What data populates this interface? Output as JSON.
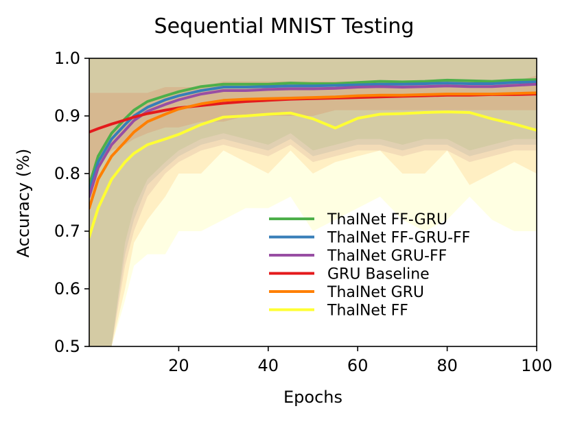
{
  "chart_data": {
    "type": "line",
    "title": "Sequential MNIST Testing",
    "xlabel": "Epochs",
    "ylabel": "Accuracy (%)",
    "xlim": [
      0,
      100
    ],
    "ylim": [
      0.5,
      1.0
    ],
    "x_ticks": [
      20,
      40,
      60,
      80,
      100
    ],
    "y_ticks": [
      0.5,
      0.6,
      0.7,
      0.8,
      0.9,
      1.0
    ],
    "x_tick_labels": [
      "20",
      "40",
      "60",
      "80",
      "100"
    ],
    "y_tick_labels": [
      "0.5",
      "0.6",
      "0.7",
      "0.8",
      "0.9",
      "1.0"
    ],
    "grid": false,
    "legend_position": "lower-right",
    "x": [
      0,
      2,
      5,
      8,
      10,
      13,
      17,
      20,
      25,
      30,
      35,
      40,
      45,
      50,
      55,
      60,
      65,
      70,
      75,
      80,
      85,
      90,
      95,
      100
    ],
    "series": [
      {
        "name": "ThalNet FF-GRU",
        "color": "#4daf4a",
        "values": [
          0.78,
          0.83,
          0.87,
          0.895,
          0.91,
          0.925,
          0.935,
          0.942,
          0.951,
          0.955,
          0.955,
          0.955,
          0.957,
          0.956,
          0.956,
          0.958,
          0.96,
          0.959,
          0.96,
          0.962,
          0.961,
          0.96,
          0.962,
          0.963
        ]
      },
      {
        "name": "ThalNet FF-GRU-FF",
        "color": "#377eb8",
        "values": [
          0.77,
          0.82,
          0.86,
          0.885,
          0.9,
          0.915,
          0.928,
          0.935,
          0.944,
          0.95,
          0.95,
          0.951,
          0.952,
          0.952,
          0.953,
          0.954,
          0.955,
          0.955,
          0.956,
          0.957,
          0.956,
          0.956,
          0.958,
          0.959
        ]
      },
      {
        "name": "ThalNet GRU-FF",
        "color": "#984ea3",
        "values": [
          0.76,
          0.81,
          0.85,
          0.875,
          0.892,
          0.908,
          0.92,
          0.928,
          0.938,
          0.944,
          0.944,
          0.946,
          0.947,
          0.947,
          0.948,
          0.95,
          0.951,
          0.95,
          0.951,
          0.952,
          0.951,
          0.951,
          0.953,
          0.955
        ]
      },
      {
        "name": "GRU Baseline",
        "color": "#e41a1c",
        "values": [
          0.872,
          0.878,
          0.886,
          0.893,
          0.898,
          0.904,
          0.91,
          0.914,
          0.918,
          0.922,
          0.925,
          0.927,
          0.929,
          0.93,
          0.931,
          0.932,
          0.933,
          0.934,
          0.935,
          0.936,
          0.936,
          0.937,
          0.937,
          0.938
        ]
      },
      {
        "name": "ThalNet GRU",
        "color": "#ff7f00",
        "values": [
          0.74,
          0.79,
          0.83,
          0.855,
          0.872,
          0.89,
          0.903,
          0.912,
          0.921,
          0.927,
          0.929,
          0.93,
          0.931,
          0.932,
          0.933,
          0.935,
          0.936,
          0.936,
          0.937,
          0.938,
          0.938,
          0.938,
          0.939,
          0.94
        ]
      },
      {
        "name": "ThalNet FF",
        "color": "#ffff33",
        "values": [
          0.69,
          0.74,
          0.79,
          0.82,
          0.835,
          0.85,
          0.86,
          0.868,
          0.885,
          0.898,
          0.9,
          0.903,
          0.905,
          0.895,
          0.879,
          0.896,
          0.903,
          0.904,
          0.906,
          0.907,
          0.906,
          0.895,
          0.886,
          0.875
        ]
      }
    ],
    "error_bands": [
      {
        "series": "ThalNet FF-GRU",
        "color": "#4daf4a",
        "lower": [
          0.5,
          0.5,
          0.5,
          0.68,
          0.74,
          0.79,
          0.82,
          0.84,
          0.86,
          0.87,
          0.86,
          0.85,
          0.87,
          0.84,
          0.85,
          0.86,
          0.86,
          0.85,
          0.86,
          0.86,
          0.84,
          0.85,
          0.86,
          0.86
        ],
        "upper": [
          1.0,
          1.0,
          1.0,
          1.0,
          1.0,
          1.0,
          1.0,
          1.0,
          1.0,
          1.0,
          1.0,
          1.0,
          1.0,
          1.0,
          1.0,
          1.0,
          1.0,
          1.0,
          1.0,
          1.0,
          1.0,
          1.0,
          1.0,
          1.0
        ]
      },
      {
        "series": "ThalNet FF-GRU-FF",
        "color": "#377eb8",
        "lower": [
          0.5,
          0.5,
          0.5,
          0.66,
          0.72,
          0.78,
          0.81,
          0.83,
          0.85,
          0.86,
          0.85,
          0.84,
          0.86,
          0.83,
          0.84,
          0.85,
          0.85,
          0.84,
          0.85,
          0.85,
          0.83,
          0.84,
          0.85,
          0.85
        ],
        "upper": [
          1.0,
          1.0,
          1.0,
          1.0,
          1.0,
          1.0,
          1.0,
          1.0,
          1.0,
          1.0,
          1.0,
          1.0,
          1.0,
          1.0,
          1.0,
          1.0,
          1.0,
          1.0,
          1.0,
          1.0,
          1.0,
          1.0,
          1.0,
          1.0
        ]
      },
      {
        "series": "ThalNet GRU-FF",
        "color": "#984ea3",
        "lower": [
          0.5,
          0.5,
          0.5,
          0.64,
          0.7,
          0.76,
          0.8,
          0.82,
          0.84,
          0.85,
          0.84,
          0.83,
          0.85,
          0.82,
          0.83,
          0.84,
          0.84,
          0.83,
          0.84,
          0.84,
          0.82,
          0.83,
          0.84,
          0.84
        ],
        "upper": [
          1.0,
          1.0,
          1.0,
          1.0,
          1.0,
          1.0,
          1.0,
          1.0,
          1.0,
          1.0,
          1.0,
          1.0,
          1.0,
          1.0,
          1.0,
          1.0,
          1.0,
          1.0,
          1.0,
          1.0,
          1.0,
          1.0,
          1.0,
          1.0
        ]
      },
      {
        "series": "GRU Baseline",
        "color": "#e41a1c",
        "lower": [
          0.8,
          0.82,
          0.84,
          0.85,
          0.86,
          0.87,
          0.88,
          0.88,
          0.89,
          0.89,
          0.9,
          0.9,
          0.9,
          0.9,
          0.91,
          0.91,
          0.91,
          0.91,
          0.91,
          0.91,
          0.91,
          0.91,
          0.91,
          0.91
        ],
        "upper": [
          0.94,
          0.94,
          0.94,
          0.94,
          0.94,
          0.94,
          0.95,
          0.95,
          0.95,
          0.96,
          0.96,
          0.96,
          0.96,
          0.96,
          0.96,
          0.96,
          0.96,
          0.96,
          0.96,
          0.96,
          0.96,
          0.96,
          0.96,
          0.97
        ]
      },
      {
        "series": "ThalNet GRU",
        "color": "#ff7f00",
        "lower": [
          0.5,
          0.5,
          0.5,
          0.6,
          0.68,
          0.72,
          0.76,
          0.8,
          0.8,
          0.84,
          0.82,
          0.8,
          0.84,
          0.8,
          0.82,
          0.83,
          0.84,
          0.8,
          0.8,
          0.84,
          0.78,
          0.8,
          0.82,
          0.8
        ],
        "upper": [
          1.0,
          1.0,
          1.0,
          1.0,
          1.0,
          1.0,
          1.0,
          1.0,
          1.0,
          1.0,
          1.0,
          1.0,
          1.0,
          1.0,
          1.0,
          1.0,
          1.0,
          1.0,
          1.0,
          1.0,
          1.0,
          1.0,
          1.0,
          1.0
        ]
      },
      {
        "series": "ThalNet FF",
        "color": "#ffff33",
        "lower": [
          0.5,
          0.5,
          0.5,
          0.58,
          0.64,
          0.66,
          0.66,
          0.7,
          0.7,
          0.72,
          0.74,
          0.74,
          0.76,
          0.7,
          0.72,
          0.74,
          0.76,
          0.72,
          0.7,
          0.72,
          0.76,
          0.72,
          0.7,
          0.7
        ],
        "upper": [
          1.0,
          1.0,
          1.0,
          1.0,
          1.0,
          1.0,
          1.0,
          1.0,
          1.0,
          1.0,
          1.0,
          1.0,
          1.0,
          1.0,
          1.0,
          1.0,
          1.0,
          1.0,
          1.0,
          1.0,
          1.0,
          1.0,
          1.0,
          1.0
        ]
      }
    ]
  }
}
